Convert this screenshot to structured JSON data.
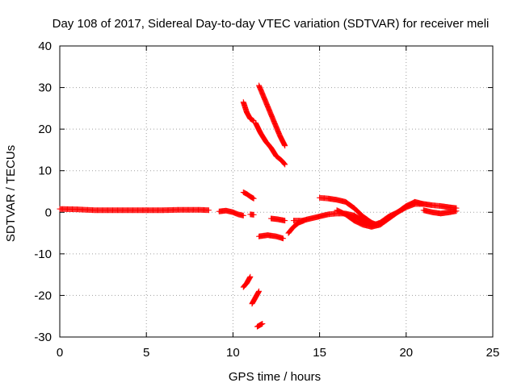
{
  "chart_data": {
    "type": "scatter",
    "title": "Day 108 of 2017, Sidereal Day-to-day VTEC variation (SDTVAR) for receiver meli",
    "xlabel": "GPS time / hours",
    "ylabel": "SDTVAR / TECUs",
    "xlim": [
      0,
      25
    ],
    "ylim": [
      -30,
      40
    ],
    "xticks": [
      0,
      5,
      10,
      15,
      20,
      25
    ],
    "yticks": [
      -30,
      -20,
      -10,
      0,
      10,
      20,
      30,
      40
    ],
    "grid": true,
    "marker": "+",
    "color": "#ff0000",
    "segments": [
      {
        "x": [
          0.0,
          1.0,
          2.0,
          3.0,
          4.0,
          5.0,
          6.0,
          7.0,
          8.0,
          8.6
        ],
        "y": [
          0.8,
          0.7,
          0.5,
          0.5,
          0.5,
          0.5,
          0.5,
          0.6,
          0.6,
          0.5
        ]
      },
      {
        "x": [
          9.2,
          9.6,
          10.0,
          10.3,
          10.6
        ],
        "y": [
          0.2,
          0.4,
          0.0,
          -0.5,
          -0.8
        ]
      },
      {
        "x": [
          10.6,
          10.8,
          11.0,
          11.2
        ],
        "y": [
          4.8,
          4.4,
          3.8,
          3.3
        ]
      },
      {
        "x": [
          11.0,
          11.2
        ],
        "y": [
          -0.5,
          -0.6
        ]
      },
      {
        "x": [
          10.6,
          10.8,
          11.0,
          11.2
        ],
        "y": [
          26.5,
          24.0,
          22.5,
          22.0
        ]
      },
      {
        "x": [
          11.5,
          11.8,
          12.1,
          12.4,
          12.7,
          13.0
        ],
        "y": [
          30.5,
          27.5,
          24.5,
          21.5,
          18.5,
          16.0
        ]
      },
      {
        "x": [
          11.3,
          11.6,
          11.9,
          12.2,
          12.5,
          12.8,
          13.0
        ],
        "y": [
          21.5,
          19.0,
          17.0,
          15.5,
          13.5,
          12.5,
          11.5
        ]
      },
      {
        "x": [
          10.6,
          10.8,
          11.0
        ],
        "y": [
          -18.0,
          -17.0,
          -15.5
        ]
      },
      {
        "x": [
          11.1,
          11.3,
          11.5
        ],
        "y": [
          -22.0,
          -20.5,
          -19.0
        ]
      },
      {
        "x": [
          11.4,
          11.7
        ],
        "y": [
          -27.5,
          -26.8
        ]
      },
      {
        "x": [
          11.5,
          12.0,
          12.5,
          12.9
        ],
        "y": [
          -5.8,
          -5.5,
          -5.8,
          -6.3
        ]
      },
      {
        "x": [
          12.2,
          12.6,
          13.0
        ],
        "y": [
          -1.5,
          -1.7,
          -2.0
        ]
      },
      {
        "x": [
          13.2,
          13.5,
          13.8,
          14.1
        ],
        "y": [
          -5.0,
          -3.5,
          -2.5,
          -2.0
        ]
      },
      {
        "x": [
          13.5,
          14.0,
          14.5,
          15.0,
          15.5,
          16.0,
          16.5,
          17.0,
          17.5,
          18.0,
          18.5,
          19.0,
          19.5,
          20.0,
          20.5,
          21.0,
          21.5,
          22.0,
          22.5,
          22.9
        ],
        "y": [
          -2.0,
          -2.0,
          -1.5,
          -1.0,
          -0.5,
          -0.3,
          -0.3,
          -0.8,
          -2.0,
          -3.2,
          -2.5,
          -1.0,
          0.0,
          1.2,
          2.0,
          2.0,
          1.7,
          1.5,
          1.2,
          1.0
        ]
      },
      {
        "x": [
          15.0,
          15.5,
          16.0,
          16.5,
          17.0,
          17.5,
          18.0,
          18.3
        ],
        "y": [
          3.5,
          3.3,
          3.0,
          2.5,
          1.0,
          -1.0,
          -2.5,
          -3.0
        ]
      },
      {
        "x": [
          16.0,
          16.5,
          17.0,
          17.5,
          18.0,
          18.5,
          19.0,
          19.5,
          20.0,
          20.5,
          21.0
        ],
        "y": [
          0.5,
          -0.5,
          -2.0,
          -3.0,
          -3.5,
          -3.0,
          -1.5,
          0.0,
          1.5,
          2.5,
          2.0
        ]
      },
      {
        "x": [
          21.0,
          21.5,
          22.0,
          22.5,
          22.9
        ],
        "y": [
          0.5,
          0.0,
          -0.3,
          0.0,
          0.3
        ]
      }
    ]
  }
}
